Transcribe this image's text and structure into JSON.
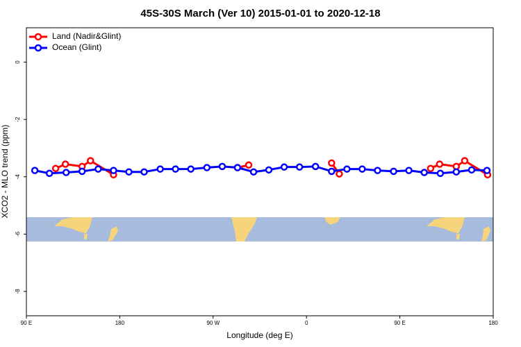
{
  "chart_data": {
    "type": "line",
    "title": "45S-30S March (Ver 10)   2015-01-01 to 2020-12-18",
    "x_label": "Longitude (deg E)",
    "y_label": "XCO2 - MLO trend (ppm)",
    "xlim": [
      90,
      540
    ],
    "ylim": [
      -8.85,
      1.2
    ],
    "xticks": [
      {
        "value": 90,
        "label": "90 E"
      },
      {
        "value": 180,
        "label": "180"
      },
      {
        "value": 270,
        "label": "90 W"
      },
      {
        "value": 360,
        "label": "0"
      },
      {
        "value": 450,
        "label": "90 E"
      },
      {
        "value": 540,
        "label": "180"
      }
    ],
    "yticks": [
      0,
      -2,
      -4,
      -6,
      -8
    ],
    "legend": "top-left",
    "series": [
      {
        "name": "Land (Nadir&Glint)",
        "color": "#ff0000",
        "x": [
          118.2,
          127.6,
          143.7,
          151.8,
          174.0,
          null,
          293.5,
          304.3,
          null,
          384.2,
          391.6,
          null,
          479.6,
          488.3,
          504.4,
          512.5,
          534.6
        ],
        "values": [
          -3.71,
          -3.56,
          -3.64,
          -3.44,
          -3.93,
          null,
          -3.68,
          -3.59,
          null,
          -3.52,
          -3.9,
          null,
          -3.71,
          -3.56,
          -3.64,
          -3.44,
          -3.93
        ]
      },
      {
        "name": "Ocean (Glint)",
        "color": "#0000ff",
        "x": [
          98.1,
          112.2,
          128.3,
          143.7,
          159.2,
          174.0,
          188.8,
          203.5,
          219.0,
          233.7,
          248.5,
          264.0,
          278.8,
          293.5,
          309.0,
          323.7,
          338.5,
          353.3,
          368.7,
          384.2,
          399.0,
          413.7,
          428.5,
          444.0,
          458.7,
          473.5,
          489.0,
          504.4,
          519.2,
          534.0
        ],
        "values": [
          -3.78,
          -3.88,
          -3.85,
          -3.81,
          -3.73,
          -3.78,
          -3.83,
          -3.83,
          -3.73,
          -3.73,
          -3.73,
          -3.68,
          -3.64,
          -3.68,
          -3.83,
          -3.76,
          -3.66,
          -3.66,
          -3.64,
          -3.81,
          -3.73,
          -3.73,
          -3.78,
          -3.81,
          -3.78,
          -3.85,
          -3.88,
          -3.83,
          -3.76,
          -3.78
        ]
      }
    ]
  }
}
